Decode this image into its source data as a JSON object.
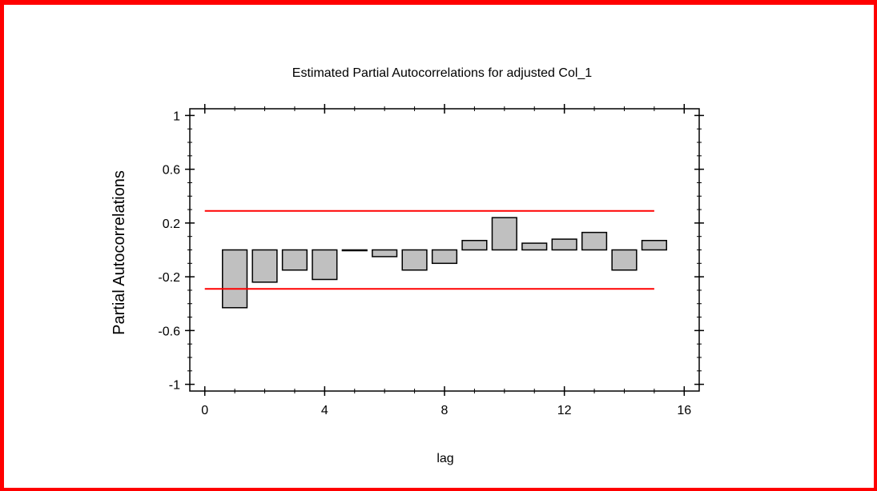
{
  "chart_data": {
    "type": "bar",
    "title": "Estimated Partial Autocorrelations for adjusted Col_1",
    "xlabel": "lag",
    "ylabel": "Partial Autocorrelations",
    "xlim": [
      -0.5,
      16.5
    ],
    "ylim": [
      -1.05,
      1.05
    ],
    "x_ticks": [
      "0",
      "4",
      "8",
      "12",
      "16"
    ],
    "y_ticks": [
      "1",
      "0.6",
      "0.2",
      "-0.2",
      "-0.6",
      "-1"
    ],
    "x": [
      1,
      2,
      3,
      4,
      5,
      6,
      7,
      8,
      9,
      10,
      11,
      12,
      13,
      14,
      15
    ],
    "values": [
      -0.43,
      -0.24,
      -0.15,
      -0.22,
      0.0,
      -0.05,
      -0.15,
      -0.1,
      0.07,
      0.24,
      0.05,
      0.08,
      0.13,
      -0.15,
      0.07
    ],
    "limits": [
      0.29,
      -0.29
    ],
    "bar_color": "#c0c0c0",
    "limit_color": "#ff0000",
    "grid": false
  }
}
